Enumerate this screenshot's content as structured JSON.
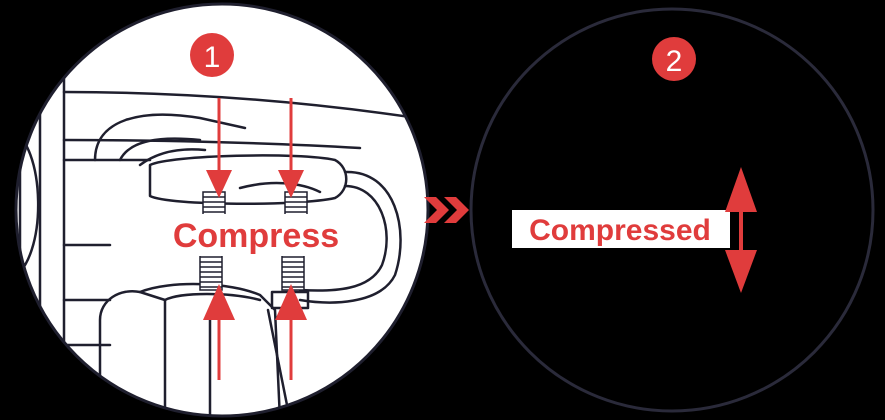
{
  "steps": [
    {
      "number": "1",
      "label": "Compress"
    },
    {
      "number": "2",
      "label": "Compressed"
    }
  ],
  "colors": {
    "accent": "#e03c3c",
    "outline": "#1f1f2e",
    "panel": "#ffffff",
    "background": "#000000"
  }
}
